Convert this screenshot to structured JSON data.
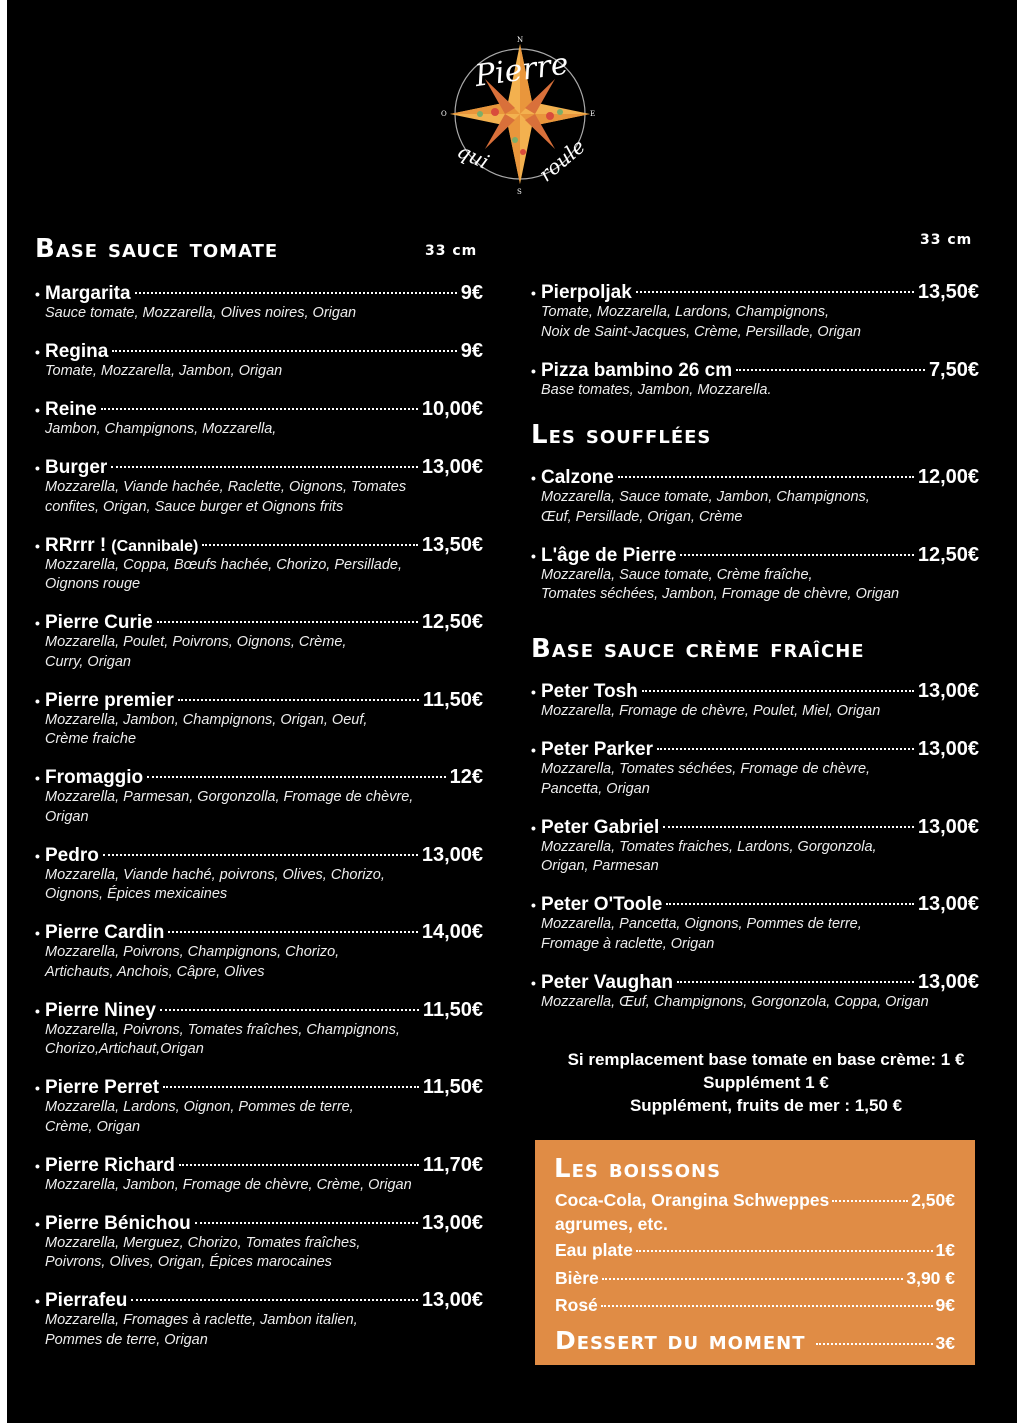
{
  "logo": {
    "text_top": "Pierre",
    "text_bottom_left": "qui",
    "text_bottom_right": "roule",
    "compass": [
      "N",
      "E",
      "S",
      "O"
    ]
  },
  "left": {
    "heading": "Base sauce tomate",
    "size": "33 cm",
    "items": [
      {
        "name": "Margarita",
        "price": "9€",
        "desc": [
          "Sauce tomate, Mozzarella, Olives noires, Origan"
        ]
      },
      {
        "name": "Regina",
        "price": "9€",
        "desc": [
          "Tomate, Mozzarella, Jambon, Origan"
        ]
      },
      {
        "name": "Reine",
        "price": "10,00€",
        "desc": [
          "Jambon, Champignons, Mozzarella,"
        ]
      },
      {
        "name": "Burger",
        "price": "13,00€",
        "desc": [
          "Mozzarella, Viande hachée, Raclette, Oignons, Tomates",
          "confites, Origan, Sauce burger et Oignons frits"
        ]
      },
      {
        "name": "RRrrr !",
        "suffix": "(Cannibale)",
        "price": "13,50€",
        "desc": [
          "Mozzarella, Coppa, Bœufs hachée, Chorizo, Persillade,",
          "Oignons rouge"
        ]
      },
      {
        "name": "Pierre Curie",
        "price": "12,50€",
        "desc": [
          "Mozzarella, Poulet, Poivrons, Oignons, Crème,",
          "Curry, Origan"
        ]
      },
      {
        "name": "Pierre premier",
        "price": "11,50€",
        "desc": [
          "Mozzarella, Jambon, Champignons, Origan, Oeuf,",
          "Crème fraiche"
        ]
      },
      {
        "name": "Fromaggio",
        "price": "12€",
        "desc": [
          "Mozzarella, Parmesan, Gorgonzolla, Fromage de chèvre,",
          "Origan"
        ]
      },
      {
        "name": "Pedro",
        "price": "13,00€",
        "desc": [
          "Mozzarella, Viande haché, poivrons, Olives, Chorizo,",
          "Oignons, Épices mexicaines"
        ]
      },
      {
        "name": "Pierre Cardin",
        "price": "14,00€",
        "desc": [
          "Mozzarella, Poivrons, Champignons, Chorizo,",
          "Artichauts, Anchois, Câpre, Olives"
        ]
      },
      {
        "name": "Pierre Niney",
        "price": "11,50€",
        "desc": [
          "Mozzarella, Poivrons, Tomates fraîches, Champignons,",
          "Chorizo,Artichaut,Origan"
        ]
      },
      {
        "name": "Pierre Perret",
        "price": "11,50€",
        "desc": [
          "Mozzarella, Lardons, Oignon, Pommes de terre,",
          "Crème, Origan"
        ]
      },
      {
        "name": "Pierre Richard",
        "price": "11,70€",
        "desc": [
          "Mozzarella, Jambon, Fromage de chèvre, Crème, Origan"
        ]
      },
      {
        "name": "Pierre Bénichou",
        "price": "13,00€",
        "desc": [
          "Mozzarella, Merguez, Chorizo, Tomates fraîches,",
          "Poivrons, Olives, Origan, Épices marocaines"
        ]
      },
      {
        "name": "Pierrafeu",
        "price": "13,00€",
        "desc": [
          "Mozzarella, Fromages à raclette, Jambon italien,",
          "Pommes de terre, Origan"
        ]
      }
    ]
  },
  "right": {
    "size": "33 cm",
    "items_top": [
      {
        "name": "Pierpoljak",
        "price": "13,50€",
        "desc": [
          "Tomate, Mozzarella, Lardons, Champignons,",
          "Noix de Saint-Jacques, Crème, Persillade, Origan"
        ]
      },
      {
        "name": "Pizza bambino 26 cm",
        "price": "7,50€",
        "desc": [
          "Base tomates, Jambon, Mozzarella."
        ]
      }
    ],
    "souflees_heading": "Les soufflées",
    "souflees": [
      {
        "name": "Calzone",
        "price": "12,00€",
        "desc": [
          "Mozzarella, Sauce tomate, Jambon, Champignons,",
          "Œuf, Persillade, Origan, Crème"
        ]
      },
      {
        "name": "L'âge de Pierre",
        "price": "12,50€",
        "desc": [
          "Mozzarella, Sauce tomate, Crème fraîche,",
          "Tomates séchées, Jambon, Fromage de chèvre, Origan"
        ]
      }
    ],
    "creme_heading": "Base sauce crème fraîche",
    "creme": [
      {
        "name": "Peter Tosh",
        "price": "13,00€",
        "desc": [
          "Mozzarella, Fromage de chèvre, Poulet, Miel, Origan"
        ]
      },
      {
        "name": "Peter Parker",
        "price": "13,00€",
        "desc": [
          "Mozzarella, Tomates séchées, Fromage de chèvre,",
          "Pancetta, Origan"
        ]
      },
      {
        "name": "Peter Gabriel",
        "price": "13,00€",
        "desc": [
          "Mozzarella, Tomates fraiches, Lardons, Gorgonzola,",
          "Origan, Parmesan"
        ]
      },
      {
        "name": "Peter O'Toole",
        "price": "13,00€",
        "desc": [
          "Mozzarella, Pancetta, Oignons, Pommes de terre,",
          "Fromage à raclette, Origan"
        ]
      },
      {
        "name": "Peter Vaughan",
        "price": "13,00€",
        "desc": [
          "Mozzarella, Œuf, Champignons, Gorgonzola, Coppa, Origan"
        ]
      }
    ],
    "notes": [
      "Si remplacement base tomate en base crème: 1 €",
      "Supplément 1 €",
      "Supplément, fruits de mer : 1,50 €"
    ]
  },
  "drinks": {
    "heading": "Les boissons",
    "items": [
      {
        "name": "Coca-Cola, Orangina Schweppes",
        "price": "2,50€"
      },
      {
        "name": "agrumes, etc.",
        "price": ""
      },
      {
        "name": "Eau plate",
        "price": "1€"
      },
      {
        "name": "Bière",
        "price": "3,90 €"
      },
      {
        "name": "Rosé",
        "price": "9€"
      }
    ],
    "dessert": {
      "name": "Dessert du moment",
      "price": "3€"
    },
    "box_color": "#e08c45"
  }
}
